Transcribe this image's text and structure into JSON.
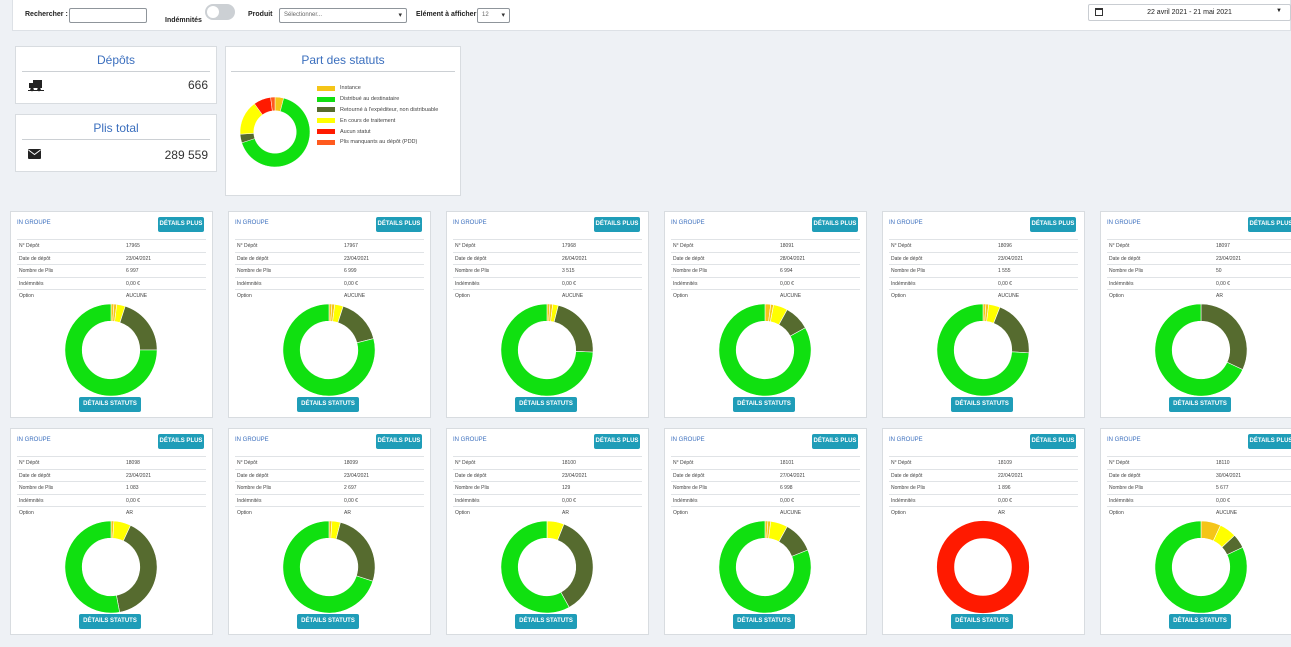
{
  "filters": {
    "search_label": "Rechercher :",
    "search_value": "",
    "indemnites_label": "Indémnités",
    "produit_label": "Produit",
    "produit_placeholder": "Sélectionner...",
    "element_label": "Elément à afficher :",
    "element_value": "12",
    "date_range": "22 avril 2021 - 21 mai 2021"
  },
  "summary": {
    "depots_title": "Dépôts",
    "depots_value": "666",
    "plis_title": "Plis total",
    "plis_value": "289 559",
    "statuts_title": "Part des statuts"
  },
  "colors": {
    "instance": "#f5c518",
    "distribue": "#10e010",
    "retourne": "#566b2f",
    "en_cours": "#ffff00",
    "aucun": "#ff1a00",
    "manquants": "#ff5a1e"
  },
  "legend": [
    {
      "label": "Instance",
      "color": "#f5c518"
    },
    {
      "label": "Distribué au destinataire",
      "color": "#10e010"
    },
    {
      "label": "Retourné à l'expéditeur, non distribuable",
      "color": "#566b2f"
    },
    {
      "label": "En cours de traitement",
      "color": "#ffff00"
    },
    {
      "label": "Aucun statut",
      "color": "#ff1a00"
    },
    {
      "label": "Plis manquants au dépôt (PDD)",
      "color": "#ff5a1e"
    }
  ],
  "global_donut": [
    {
      "value": 4,
      "color": "#f5c518"
    },
    {
      "value": 66,
      "color": "#10e010"
    },
    {
      "value": 4,
      "color": "#566b2f"
    },
    {
      "value": 16,
      "color": "#ffff00"
    },
    {
      "value": 8,
      "color": "#ff1a00"
    },
    {
      "value": 2,
      "color": "#ff5a1e"
    }
  ],
  "labels": {
    "group": "IN GROUPE",
    "details_plus": "DÉTAILS PLUS",
    "details_statuts": "DÉTAILS STATUTS",
    "k_depot": "N° Dépôt",
    "k_date": "Date de dépôt",
    "k_plis": "Nombre de Plis",
    "k_indem": "Indémnités",
    "k_option": "Option"
  },
  "depots": [
    {
      "num": "17965",
      "date": "23/04/2021",
      "plis": "6 997",
      "indem": "0,00 €",
      "option": "AUCUNE",
      "segments": [
        1,
        0,
        0,
        1,
        3,
        0,
        20,
        75
      ]
    },
    {
      "num": "17967",
      "date": "23/04/2021",
      "plis": "6 999",
      "indem": "0,00 €",
      "option": "AUCUNE",
      "segments": [
        1,
        0,
        0,
        1,
        3,
        0,
        16,
        79
      ]
    },
    {
      "num": "17968",
      "date": "26/04/2021",
      "plis": "3 515",
      "indem": "0,00 €",
      "option": "AUCUNE",
      "segments": [
        1,
        0,
        0,
        1,
        2,
        0,
        22,
        75
      ]
    },
    {
      "num": "18091",
      "date": "28/04/2021",
      "plis": "6 994",
      "indem": "0,00 €",
      "option": "AUCUNE",
      "segments": [
        2,
        0,
        0,
        1,
        5,
        0,
        9,
        83
      ]
    },
    {
      "num": "18096",
      "date": "23/04/2021",
      "plis": "1 555",
      "indem": "0,00 €",
      "option": "AUCUNE",
      "segments": [
        1,
        0,
        0,
        1,
        4,
        0,
        20,
        74
      ]
    },
    {
      "num": "18097",
      "date": "23/04/2021",
      "plis": "50",
      "indem": "0,00 €",
      "option": "AR",
      "segments": [
        0,
        0,
        0,
        0,
        0,
        0,
        32,
        68
      ]
    },
    {
      "num": "18098",
      "date": "23/04/2021",
      "plis": "1 083",
      "indem": "0,00 €",
      "option": "AR",
      "segments": [
        1,
        0,
        0,
        0,
        6,
        0,
        40,
        53
      ]
    },
    {
      "num": "18099",
      "date": "23/04/2021",
      "plis": "2 697",
      "indem": "0,00 €",
      "option": "AR",
      "segments": [
        0,
        0,
        0,
        1,
        3,
        0,
        26,
        70
      ]
    },
    {
      "num": "18100",
      "date": "23/04/2021",
      "plis": "129",
      "indem": "0,00 €",
      "option": "AR",
      "segments": [
        0,
        0,
        0,
        0,
        6,
        0,
        36,
        58
      ]
    },
    {
      "num": "18101",
      "date": "27/04/2021",
      "plis": "6 998",
      "indem": "0,00 €",
      "option": "AUCUNE",
      "segments": [
        1,
        0,
        0,
        1,
        6,
        0,
        11,
        81
      ]
    },
    {
      "num": "18109",
      "date": "22/04/2021",
      "plis": "1 896",
      "indem": "0,00 €",
      "option": "AR",
      "segments": [
        0,
        100,
        0,
        0,
        0,
        0,
        0,
        0
      ]
    },
    {
      "num": "18110",
      "date": "30/04/2021",
      "plis": "5 677",
      "indem": "0,00 €",
      "option": "AUCUNE",
      "segments": [
        7,
        0,
        0,
        0,
        6,
        0,
        5,
        82
      ]
    }
  ]
}
